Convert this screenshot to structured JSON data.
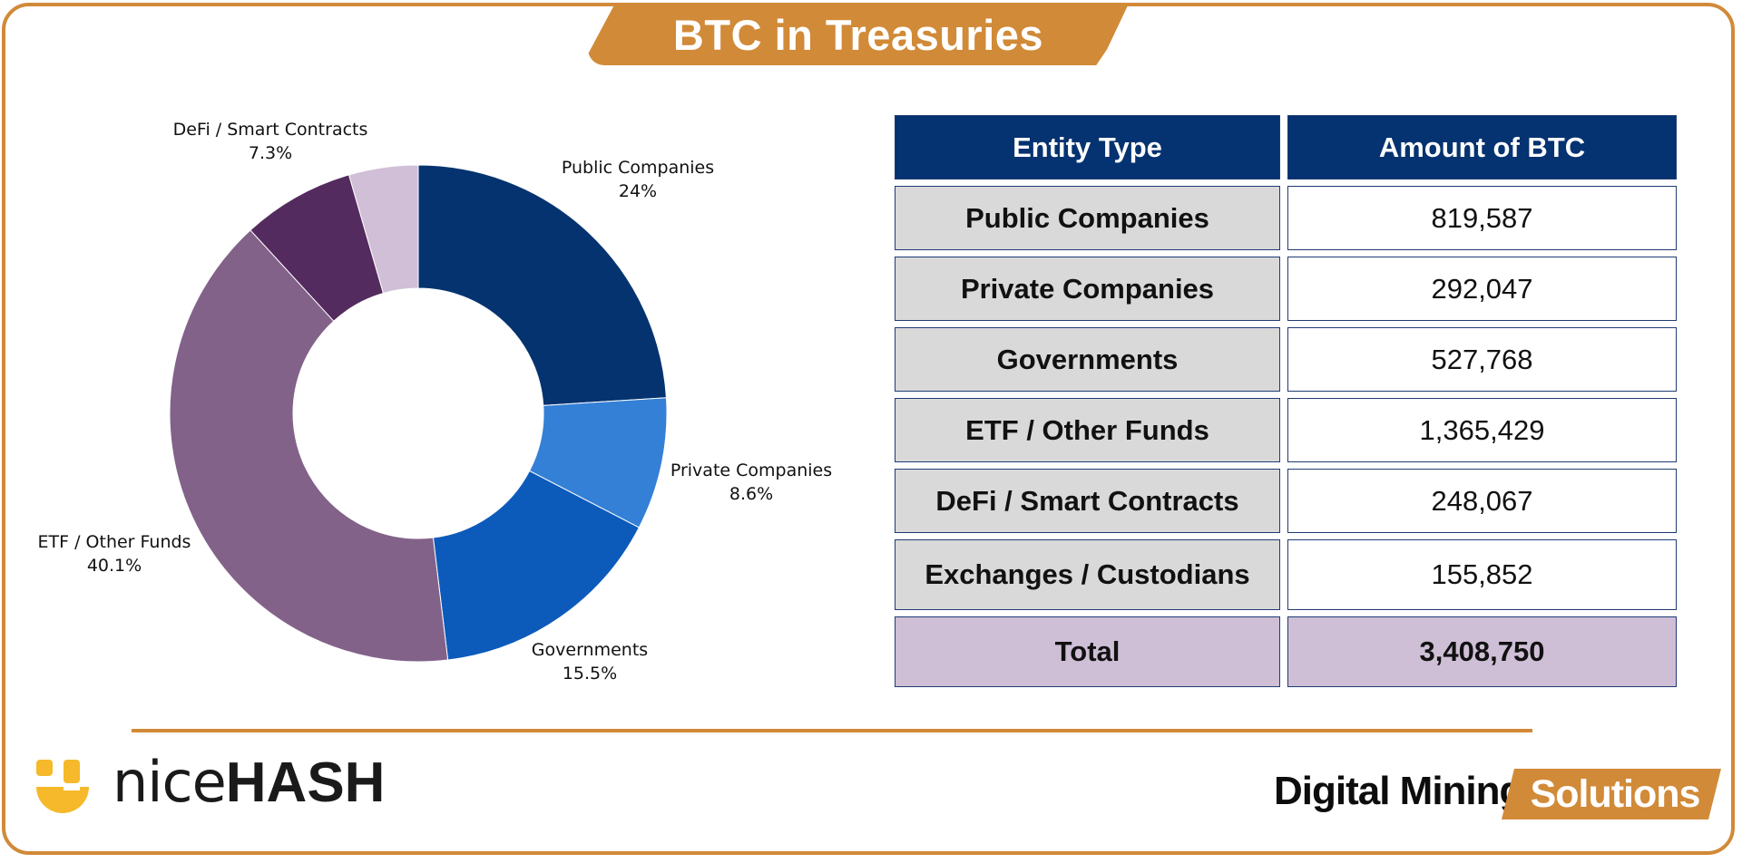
{
  "title": "BTC in Treasuries",
  "colors": {
    "accent": "#d18a38",
    "header_bg": "#053270",
    "entity_bg": "#d9d9d9",
    "total_bg": "#cfbfd6"
  },
  "chart_data": {
    "type": "pie",
    "donut": true,
    "series": [
      {
        "name": "Public Companies",
        "label": "24%",
        "value": 24.0,
        "color": "#04336f"
      },
      {
        "name": "Private Companies",
        "label": "8.6%",
        "value": 8.6,
        "color": "#3480d6"
      },
      {
        "name": "Governments",
        "label": "15.5%",
        "value": 15.5,
        "color": "#0c5bbb"
      },
      {
        "name": "ETF / Other Funds",
        "label": "40.1%",
        "value": 40.1,
        "color": "#83628a"
      },
      {
        "name": "DeFi / Smart Contracts",
        "label": "7.3%",
        "value": 7.3,
        "color": "#542b5e"
      },
      {
        "name": "Exchanges / Custodians",
        "label": "",
        "value": 4.5,
        "color": "#d0bfd6"
      }
    ]
  },
  "table": {
    "headers": [
      "Entity Type",
      "Amount of BTC"
    ],
    "rows": [
      {
        "entity": "Public Companies",
        "amount": "819,587"
      },
      {
        "entity": "Private Companies",
        "amount": "292,047"
      },
      {
        "entity": "Governments",
        "amount": "527,768"
      },
      {
        "entity": "ETF / Other Funds",
        "amount": "1,365,429"
      },
      {
        "entity": "DeFi / Smart Contracts",
        "amount": "248,067"
      },
      {
        "entity": "Exchanges / Custodians",
        "amount": "155,852"
      }
    ],
    "total": {
      "entity": "Total",
      "amount": "3,408,750"
    }
  },
  "footer": {
    "nicehash_light": "nice",
    "nicehash_bold": "HASH",
    "dms_main": "Digital Mining",
    "dms_tag": "Solutions"
  }
}
